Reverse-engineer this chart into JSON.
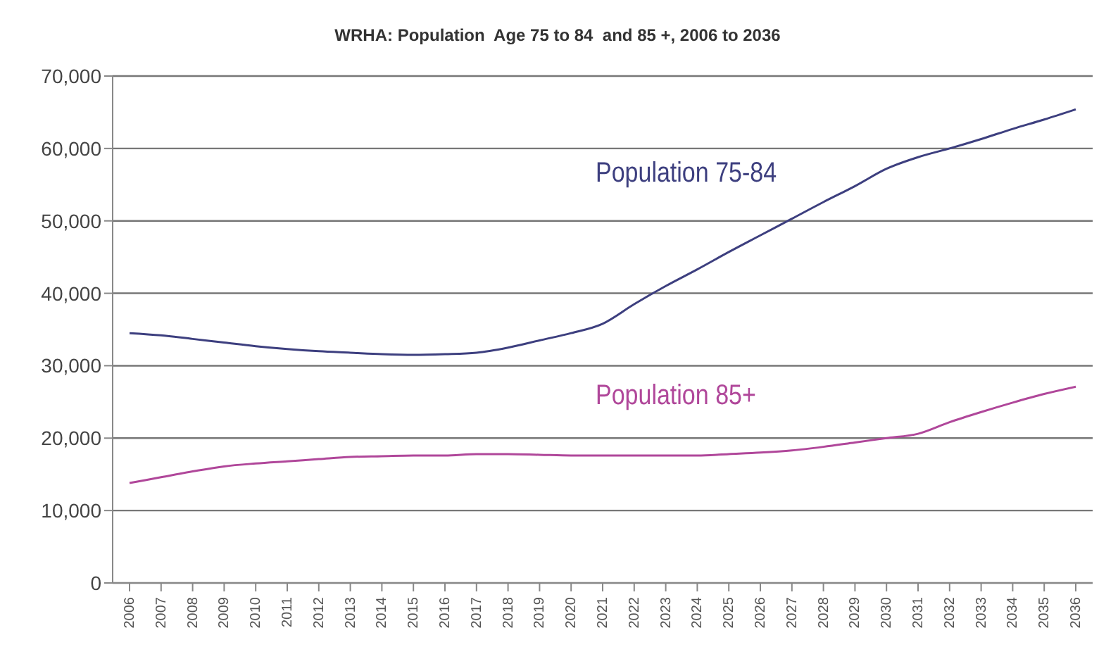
{
  "chart_data": {
    "type": "line",
    "title": "WRHA: Population  Age 75 to 84  and 85 +, 2006 to 2036",
    "categories": [
      "2006",
      "2007",
      "2008",
      "2009",
      "2010",
      "2011",
      "2012",
      "2013",
      "2014",
      "2015",
      "2016",
      "2017",
      "2018",
      "2019",
      "2020",
      "2021",
      "2022",
      "2023",
      "2024",
      "2025",
      "2026",
      "2027",
      "2028",
      "2029",
      "2030",
      "2031",
      "2032",
      "2033",
      "2034",
      "2035",
      "2036"
    ],
    "series": [
      {
        "name": "Population 75-84",
        "color": "#3d3f7f",
        "values": [
          34500,
          34200,
          33700,
          33200,
          32700,
          32300,
          32000,
          31800,
          31600,
          31500,
          31600,
          31800,
          32500,
          33500,
          34500,
          35800,
          38500,
          41000,
          43300,
          45700,
          48000,
          50300,
          52600,
          54800,
          57200,
          58800,
          60000,
          61300,
          62700,
          64000,
          65400
        ]
      },
      {
        "name": "Population 85+",
        "color": "#b0479a",
        "values": [
          13800,
          14600,
          15400,
          16100,
          16500,
          16800,
          17100,
          17400,
          17500,
          17600,
          17600,
          17800,
          17800,
          17700,
          17600,
          17600,
          17600,
          17600,
          17600,
          17800,
          18000,
          18300,
          18800,
          19400,
          20000,
          20600,
          22200,
          23600,
          24900,
          26100,
          27100
        ]
      }
    ],
    "ylim": [
      0,
      70000
    ],
    "yticks": [
      {
        "value": 0,
        "label": "0"
      },
      {
        "value": 10000,
        "label": "10,000"
      },
      {
        "value": 20000,
        "label": "20,000"
      },
      {
        "value": 30000,
        "label": "30,000"
      },
      {
        "value": 40000,
        "label": "40,000"
      },
      {
        "value": 50000,
        "label": "50,000"
      },
      {
        "value": 60000,
        "label": "60,000"
      },
      {
        "value": 70000,
        "label": "70,000"
      }
    ],
    "grid": "y",
    "legend": false,
    "marker": "none",
    "line_style": "solid"
  }
}
